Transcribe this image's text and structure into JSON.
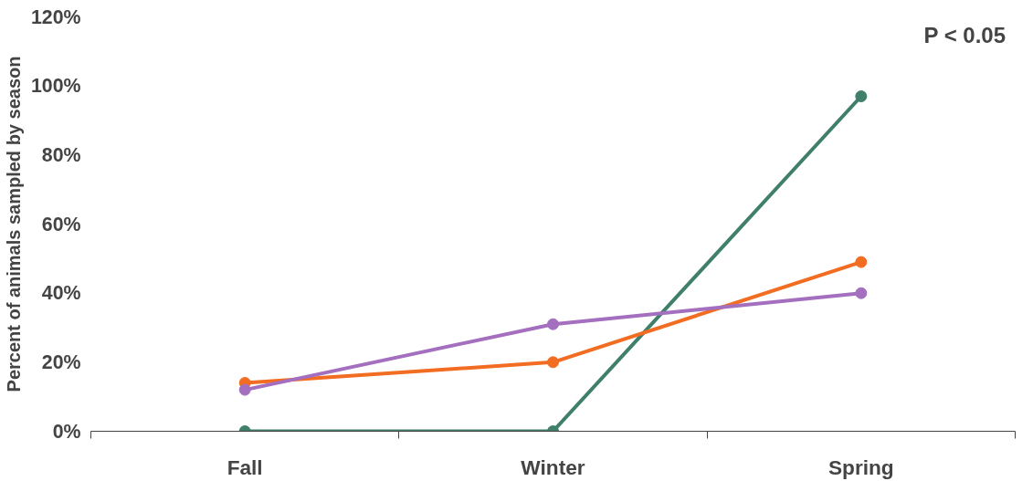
{
  "chart_data": {
    "type": "line",
    "ylabel": "Percent of animals sampled by season",
    "categories": [
      "Fall",
      "Winter",
      "Spring"
    ],
    "series": [
      {
        "color": "#3f7f6b",
        "values": [
          0,
          0,
          97
        ]
      },
      {
        "color": "#f26c21",
        "values": [
          14,
          20,
          49
        ]
      },
      {
        "color": "#a46fbf",
        "values": [
          12,
          31,
          40
        ]
      }
    ],
    "ylim": [
      0,
      120
    ],
    "yticks": [
      {
        "value": 0,
        "label": "0%"
      },
      {
        "value": 20,
        "label": "20%"
      },
      {
        "value": 40,
        "label": "40%"
      },
      {
        "value": 60,
        "label": "60%"
      },
      {
        "value": 80,
        "label": "80%"
      },
      {
        "value": 100,
        "label": "100%"
      },
      {
        "value": 120,
        "label": "120%"
      }
    ],
    "annotations": [
      "P < 0.05"
    ],
    "grid": false,
    "marker": "circle",
    "line_style": "solid"
  }
}
